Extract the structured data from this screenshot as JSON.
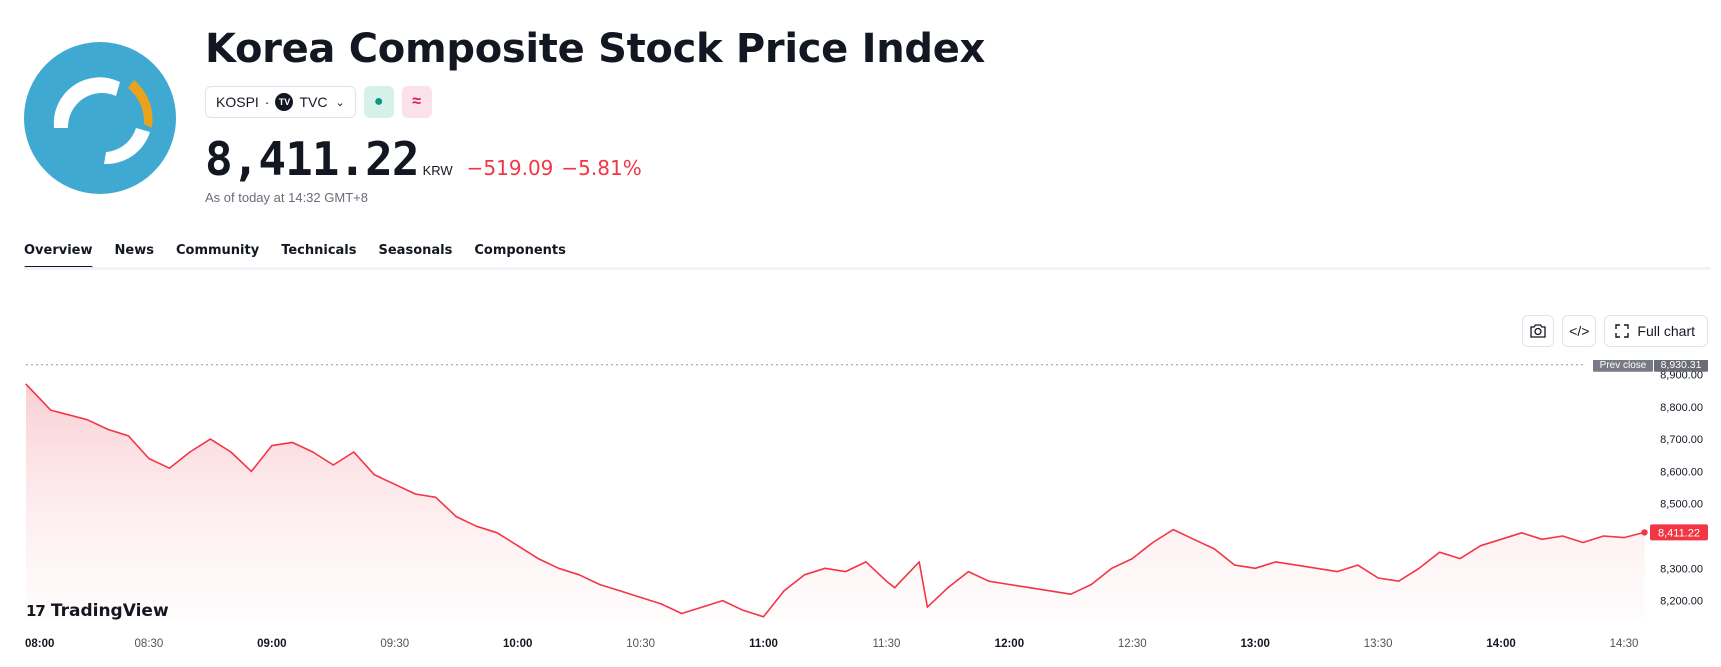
{
  "header": {
    "title": "Korea Composite Stock Price Index",
    "logo_icon": "kospi-logo-icon",
    "symbol": "KOSPI",
    "separator": "·",
    "exchange_badge": "TV",
    "exchange": "TVC",
    "market_status_icon": "market-open-dot",
    "data_delay_icon": "delayed-data-icon"
  },
  "quote": {
    "price": "8,411.22",
    "currency": "KRW",
    "change": "−519.09",
    "change_percent": "−5.81%",
    "as_of": "As of today at 14:32 GMT+8"
  },
  "tabs": [
    {
      "label": "Overview",
      "active": true
    },
    {
      "label": "News",
      "active": false
    },
    {
      "label": "Community",
      "active": false
    },
    {
      "label": "Technicals",
      "active": false
    },
    {
      "label": "Seasonals",
      "active": false
    },
    {
      "label": "Components",
      "active": false
    }
  ],
  "toolbar": {
    "snapshot_icon": "camera-icon",
    "embed_icon": "code-icon",
    "full_chart_label": "Full chart"
  },
  "brand": {
    "label": "TradingView"
  },
  "colors": {
    "line": "#f23645",
    "fill_top": "#f9c7cc",
    "price_tag": "#f23645",
    "prev_close_tag": "#787b86",
    "logo_bg": "#3fa9d2",
    "logo_accent": "#e8a21c"
  },
  "chart_data": {
    "type": "area",
    "title": "",
    "xlabel": "",
    "ylabel": "",
    "x_ticks": [
      "08:00",
      "08:30",
      "09:00",
      "09:30",
      "10:00",
      "10:30",
      "11:00",
      "11:30",
      "12:00",
      "12:30",
      "13:00",
      "13:30",
      "14:00",
      "14:30"
    ],
    "y_ticks": [
      8200,
      8300,
      8400,
      8500,
      8600,
      8700,
      8800,
      8900
    ],
    "y_tick_labels": [
      "8,200.00",
      "8,300.00",
      "8,500.00",
      "8,600.00",
      "8,700.00",
      "8,800.00",
      "8,900.00"
    ],
    "ylim": [
      8140,
      8945
    ],
    "prev_close": {
      "label": "Prev close",
      "value": 8930.31,
      "value_label": "8,930.31"
    },
    "last_price": {
      "value": 8411.22,
      "label": "8,411.22"
    },
    "grid": false,
    "x_minutes": [
      0,
      3,
      6,
      9,
      12,
      15,
      20,
      25,
      30,
      35,
      40,
      45,
      50,
      55,
      60,
      65,
      70,
      75,
      80,
      85,
      90,
      95,
      100,
      105,
      110,
      115,
      120,
      125,
      130,
      135,
      140,
      145,
      150,
      155,
      160,
      165,
      170,
      175,
      180,
      185,
      190,
      195,
      200,
      205,
      210,
      212,
      215,
      218,
      220,
      225,
      230,
      235,
      240,
      245,
      250,
      255,
      260,
      265,
      270,
      275,
      280,
      285,
      290,
      295,
      300,
      305,
      310,
      315,
      320,
      325,
      330,
      335,
      340,
      345,
      350,
      355,
      360,
      365,
      370,
      375,
      380,
      385,
      390,
      395
    ],
    "values": [
      8870,
      8830,
      8790,
      8780,
      8770,
      8760,
      8730,
      8710,
      8640,
      8610,
      8660,
      8700,
      8660,
      8600,
      8680,
      8690,
      8660,
      8620,
      8660,
      8590,
      8560,
      8530,
      8520,
      8460,
      8430,
      8410,
      8370,
      8330,
      8300,
      8280,
      8250,
      8230,
      8210,
      8190,
      8160,
      8180,
      8200,
      8170,
      8150,
      8230,
      8280,
      8300,
      8290,
      8320,
      8260,
      8240,
      8280,
      8320,
      8180,
      8240,
      8290,
      8260,
      8250,
      8240,
      8230,
      8220,
      8250,
      8300,
      8330,
      8380,
      8420,
      8390,
      8360,
      8310,
      8300,
      8320,
      8310,
      8300,
      8290,
      8310,
      8270,
      8260,
      8300,
      8350,
      8330,
      8370,
      8390,
      8410,
      8390,
      8400,
      8380,
      8400,
      8395,
      8411.22
    ]
  }
}
